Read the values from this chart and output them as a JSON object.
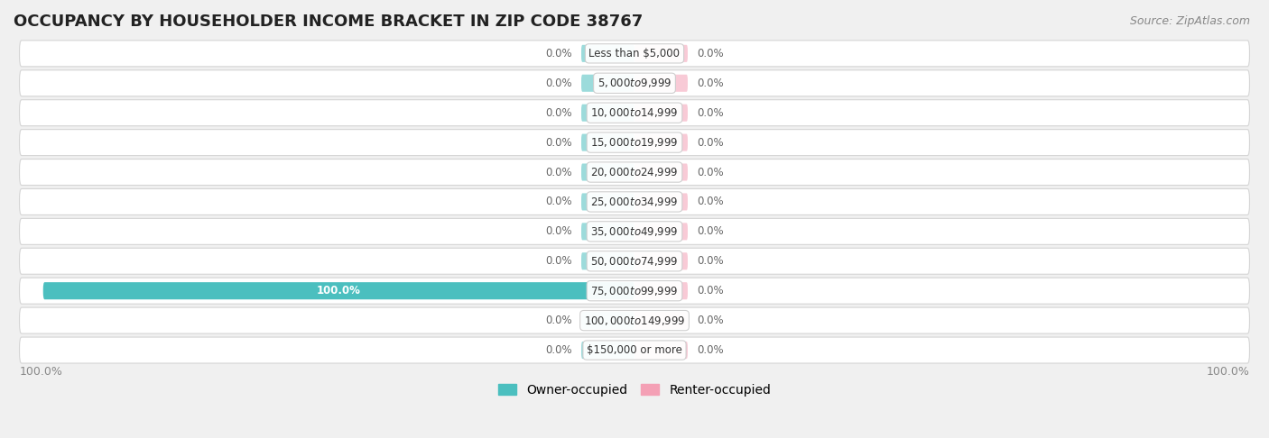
{
  "title": "OCCUPANCY BY HOUSEHOLDER INCOME BRACKET IN ZIP CODE 38767",
  "source": "Source: ZipAtlas.com",
  "categories": [
    "Less than $5,000",
    "$5,000 to $9,999",
    "$10,000 to $14,999",
    "$15,000 to $19,999",
    "$20,000 to $24,999",
    "$25,000 to $34,999",
    "$35,000 to $49,999",
    "$50,000 to $74,999",
    "$75,000 to $99,999",
    "$100,000 to $149,999",
    "$150,000 or more"
  ],
  "owner_values": [
    0.0,
    0.0,
    0.0,
    0.0,
    0.0,
    0.0,
    0.0,
    0.0,
    100.0,
    0.0,
    0.0
  ],
  "renter_values": [
    0.0,
    0.0,
    0.0,
    0.0,
    0.0,
    0.0,
    0.0,
    0.0,
    0.0,
    0.0,
    0.0
  ],
  "owner_color": "#4bbfbf",
  "renter_color": "#f4a0b5",
  "label_color_dark": "#666666",
  "axis_label_color": "#888888",
  "title_fontsize": 13,
  "source_fontsize": 9,
  "bar_label_fontsize": 8.5,
  "category_fontsize": 8.5,
  "legend_fontsize": 10,
  "axis_tick_fontsize": 9,
  "x_axis_label_left": "100.0%",
  "x_axis_label_right": "100.0%"
}
